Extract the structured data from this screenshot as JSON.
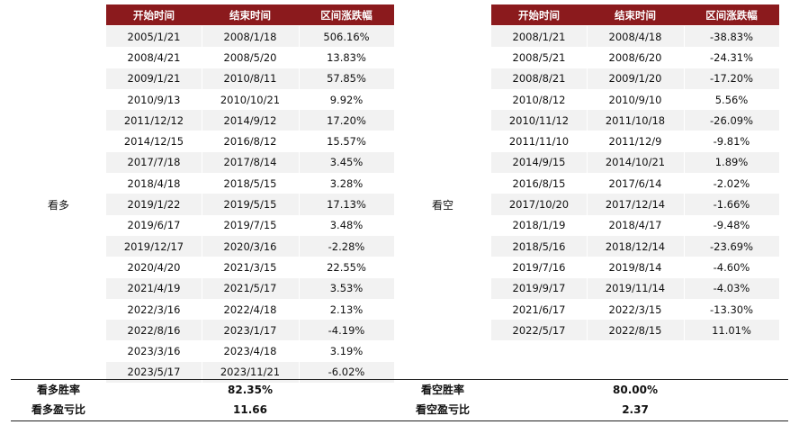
{
  "headers": [
    "开始时间",
    "结束时间",
    "区间涨跌幅"
  ],
  "bull": {
    "label": "看多",
    "rows": [
      [
        "2005/1/21",
        "2008/1/18",
        "506.16%"
      ],
      [
        "2008/4/21",
        "2008/5/20",
        "13.83%"
      ],
      [
        "2009/1/21",
        "2010/8/11",
        "57.85%"
      ],
      [
        "2010/9/13",
        "2010/10/21",
        "9.92%"
      ],
      [
        "2011/12/12",
        "2014/9/12",
        "17.20%"
      ],
      [
        "2014/12/15",
        "2016/8/12",
        "15.57%"
      ],
      [
        "2017/7/18",
        "2017/8/14",
        "3.45%"
      ],
      [
        "2018/4/18",
        "2018/5/15",
        "3.28%"
      ],
      [
        "2019/1/22",
        "2019/5/15",
        "17.13%"
      ],
      [
        "2019/6/17",
        "2019/7/15",
        "3.48%"
      ],
      [
        "2019/12/17",
        "2020/3/16",
        "-2.28%"
      ],
      [
        "2020/4/20",
        "2021/3/15",
        "22.55%"
      ],
      [
        "2021/4/19",
        "2021/5/17",
        "3.53%"
      ],
      [
        "2022/3/16",
        "2022/4/18",
        "2.13%"
      ],
      [
        "2022/8/16",
        "2023/1/17",
        "-4.19%"
      ],
      [
        "2023/3/16",
        "2023/4/18",
        "3.19%"
      ],
      [
        "2023/5/17",
        "2023/11/21",
        "-6.02%"
      ]
    ],
    "win_rate_label": "看多胜率",
    "win_rate": "82.35%",
    "pl_ratio_label": "看多盈亏比",
    "pl_ratio": "11.66"
  },
  "bear": {
    "label": "看空",
    "rows": [
      [
        "2008/1/21",
        "2008/4/18",
        "-38.83%"
      ],
      [
        "2008/5/21",
        "2008/6/20",
        "-24.31%"
      ],
      [
        "2008/8/21",
        "2009/1/20",
        "-17.20%"
      ],
      [
        "2010/8/12",
        "2010/9/10",
        "5.56%"
      ],
      [
        "2010/11/12",
        "2011/10/18",
        "-26.09%"
      ],
      [
        "2011/11/10",
        "2011/12/9",
        "-9.81%"
      ],
      [
        "2014/9/15",
        "2014/10/21",
        "1.89%"
      ],
      [
        "2016/8/15",
        "2017/6/14",
        "-2.02%"
      ],
      [
        "2017/10/20",
        "2017/12/14",
        "-1.66%"
      ],
      [
        "2018/1/19",
        "2018/4/17",
        "-9.48%"
      ],
      [
        "2018/5/16",
        "2018/12/14",
        "-23.69%"
      ],
      [
        "2019/7/16",
        "2019/8/14",
        "-4.60%"
      ],
      [
        "2019/9/17",
        "2019/11/14",
        "-4.03%"
      ],
      [
        "2021/6/17",
        "2022/3/15",
        "-13.30%"
      ],
      [
        "2022/5/17",
        "2022/8/15",
        "11.01%"
      ]
    ],
    "win_rate_label": "看空胜率",
    "win_rate": "80.00%",
    "pl_ratio_label": "看空盈亏比",
    "pl_ratio": "2.37"
  },
  "colors": {
    "header_bg": "#8b1a1d",
    "header_text": "#ffffff",
    "row_shade": "#f2f2f2"
  }
}
